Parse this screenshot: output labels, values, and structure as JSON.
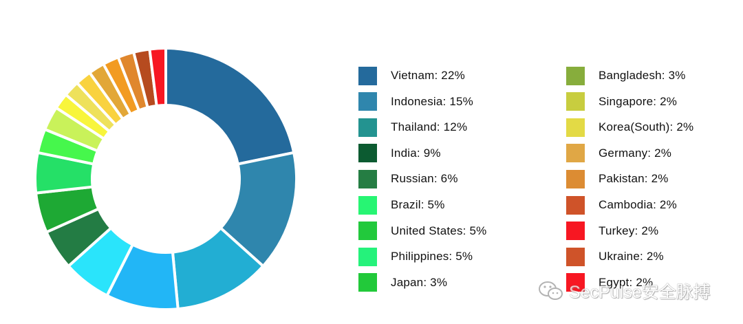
{
  "chart_data": {
    "type": "pie",
    "variant": "donut",
    "title": "",
    "series": [
      {
        "label": "Vietnam",
        "value": 22,
        "display": "Vietnam: 22%",
        "color": "#246a9c"
      },
      {
        "label": "Indonesia",
        "value": 15,
        "display": "Indonesia: 15%",
        "color": "#2f86ad"
      },
      {
        "label": "Thailand",
        "value": 12,
        "display": "Thailand: 12%",
        "color": "#239390"
      },
      {
        "label": "India",
        "value": 9,
        "display": "India: 9%",
        "color": "#0c5b31"
      },
      {
        "label": "Russian",
        "value": 6,
        "display": "Russian: 6%",
        "color": "#257d43"
      },
      {
        "label": "Brazil",
        "value": 5,
        "display": "Brazil: 5%",
        "color": "#27f573"
      },
      {
        "label": "United States",
        "value": 5,
        "display": "United States: 5%",
        "color": "#22c93c"
      },
      {
        "label": "Philippines",
        "value": 5,
        "display": "Philippines: 5%",
        "color": "#25f27b"
      },
      {
        "label": "Japan",
        "value": 3,
        "display": "Japan: 3%",
        "color": "#22c93a"
      },
      {
        "label": "Bangladesh",
        "value": 3,
        "display": "Bangladesh: 3%",
        "color": "#87ad3c"
      },
      {
        "label": "Singapore",
        "value": 2,
        "display": "Singapore: 2%",
        "color": "#c8cd3f"
      },
      {
        "label": "Korea(South)",
        "value": 2,
        "display": "Korea(South): 2%",
        "color": "#e3da45"
      },
      {
        "label": "Germany",
        "value": 2,
        "display": "Germany: 2%",
        "color": "#e0a745"
      },
      {
        "label": "Pakistan",
        "value": 2,
        "display": "Pakistan: 2%",
        "color": "#dc8c33"
      },
      {
        "label": "Cambodia",
        "value": 2,
        "display": "Cambodia: 2%",
        "color": "#cf5329"
      },
      {
        "label": "Turkey",
        "value": 2,
        "display": "Turkey: 2%",
        "color": "#f71722"
      },
      {
        "label": "Ukraine",
        "value": 2,
        "display": "Ukraine: 2%",
        "color": "#cf5329"
      },
      {
        "label": "Egypt",
        "value": 2,
        "display": "Egypt: 2%",
        "color": "#f71722"
      }
    ],
    "ring_slices": [
      {
        "label": "Vietnam",
        "value": 22,
        "color": "#246a9c"
      },
      {
        "label": "Indonesia",
        "value": 15,
        "color": "#2f86ad"
      },
      {
        "label": "Thailand",
        "value": 12,
        "color": "#22aed3"
      },
      {
        "label": "India",
        "value": 9,
        "color": "#22b6f6"
      },
      {
        "label": "Russian",
        "value": 6,
        "color": "#2ae4fb"
      },
      {
        "label": "Brazil",
        "value": 5,
        "color": "#237c44"
      },
      {
        "label": "United States",
        "value": 5,
        "color": "#1ea934"
      },
      {
        "label": "Philippines",
        "value": 5,
        "color": "#25e067"
      },
      {
        "label": "Japan",
        "value": 3,
        "color": "#46f74c"
      },
      {
        "label": "Bangladesh",
        "value": 3,
        "color": "#c9f25a"
      },
      {
        "label": "Singapore",
        "value": 2,
        "color": "#f8f53c"
      },
      {
        "label": "Korea(South)",
        "value": 2,
        "color": "#eee15b"
      },
      {
        "label": "Germany",
        "value": 2,
        "color": "#f9d23f"
      },
      {
        "label": "Pakistan",
        "value": 2,
        "color": "#e2a737"
      },
      {
        "label": "Cambodia",
        "value": 2,
        "color": "#f29b22"
      },
      {
        "label": "Turkey",
        "value": 2,
        "color": "#e0872d"
      },
      {
        "label": "Ukraine",
        "value": 2,
        "color": "#b64b1f"
      },
      {
        "label": "Egypt",
        "value": 2,
        "color": "#f71722"
      }
    ],
    "legend": {
      "placement": "right",
      "columns": 2
    }
  },
  "watermark": {
    "text": "SecPulse安全脉搏",
    "icon": "wechat-icon"
  }
}
